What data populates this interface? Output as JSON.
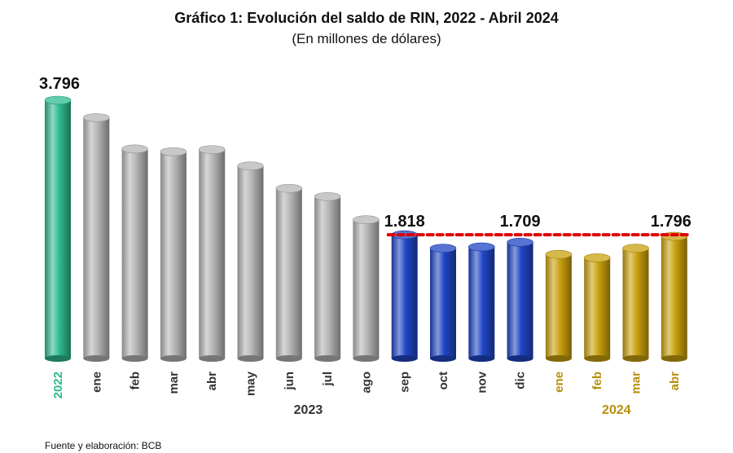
{
  "title": "Gráfico 1: Evolución del saldo de RIN, 2022 - Abril 2024",
  "subtitle": "(En millones de dólares)",
  "source": "Fuente y elaboración: BCB",
  "colors": {
    "y2022": "#2dbb8f",
    "y2023_early": "#b5b5b5",
    "y2023_late": "#1f45c4",
    "y2024": "#c9a00e",
    "reference_line": "#dd0000",
    "label_2024": "#b88f0c",
    "label_gray": "#333333"
  },
  "chart_data": {
    "type": "bar",
    "categories": [
      "2022",
      "ene",
      "feb",
      "mar",
      "abr",
      "may",
      "jun",
      "jul",
      "ago",
      "sep",
      "oct",
      "nov",
      "dic",
      "ene",
      "feb",
      "mar",
      "abr"
    ],
    "groups": [
      "",
      "2023",
      "2023",
      "2023",
      "2023",
      "2023",
      "2023",
      "2023",
      "2023",
      "2023",
      "2023",
      "2023",
      "2023",
      "2024",
      "2024",
      "2024",
      "2024"
    ],
    "values": [
      3796,
      3540,
      3080,
      3040,
      3070,
      2830,
      2500,
      2380,
      2040,
      1818,
      1620,
      1640,
      1709,
      1530,
      1480,
      1620,
      1796
    ],
    "color_keys": [
      "y2022",
      "y2023_early",
      "y2023_early",
      "y2023_early",
      "y2023_early",
      "y2023_early",
      "y2023_early",
      "y2023_early",
      "y2023_early",
      "y2023_late",
      "y2023_late",
      "y2023_late",
      "y2023_late",
      "y2024",
      "y2024",
      "y2024",
      "y2024"
    ],
    "data_labels": [
      {
        "index": 0,
        "text": "3.796"
      },
      {
        "index": 9,
        "text": "1.818"
      },
      {
        "index": 12,
        "text": "1.709"
      },
      {
        "index": 16,
        "text": "1.796"
      }
    ],
    "group_labels": [
      {
        "text": "2023",
        "from": 1,
        "to": 12,
        "color_key": "label_gray"
      },
      {
        "text": "2024",
        "from": 13,
        "to": 16,
        "color_key": "label_2024"
      }
    ],
    "reference_line": {
      "value": 1818,
      "from": 9,
      "to": 16
    },
    "ylim": [
      0,
      3796
    ],
    "grid": false,
    "legend": "none"
  }
}
